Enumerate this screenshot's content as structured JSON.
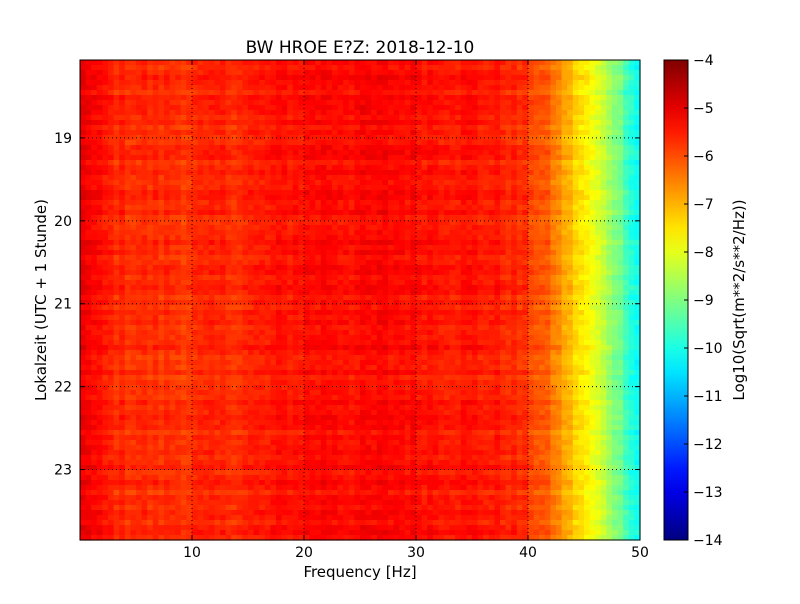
{
  "chart_data": {
    "type": "heatmap",
    "title": "BW HROE E?Z: 2018-12-10",
    "xlabel": "Frequency [Hz]",
    "ylabel": "Lokalzeit (UTC + 1 Stunde)",
    "xlim": [
      0,
      50
    ],
    "ylim_hours": [
      18.06,
      23.85
    ],
    "y_inverted": true,
    "x_ticks": [
      10,
      20,
      30,
      40,
      50
    ],
    "x_tick_labels": [
      "10",
      "20",
      "30",
      "40",
      "50"
    ],
    "y_ticks": [
      19,
      20,
      21,
      22,
      23
    ],
    "y_tick_labels": [
      "19",
      "20",
      "21",
      "22",
      "23"
    ],
    "grid": true,
    "colorbar": {
      "label": "Log10(Sqrt(m**2/s**2/Hz))",
      "min": -14,
      "max": -4,
      "ticks": [
        -4,
        -5,
        -6,
        -7,
        -8,
        -9,
        -10,
        -11,
        -12,
        -13,
        -14
      ],
      "tick_labels": [
        "−4",
        "−5",
        "−6",
        "−7",
        "−8",
        "−9",
        "−10",
        "−11",
        "−12",
        "−13",
        "−14"
      ],
      "colormap": "jet"
    },
    "spectral_profile": {
      "frequency_hz": [
        0,
        1,
        3,
        6,
        10,
        15,
        20,
        22,
        25,
        28,
        30,
        35,
        38,
        40,
        42,
        44,
        46,
        48,
        50
      ],
      "log10_amplitude": [
        -4.9,
        -5.3,
        -5.6,
        -5.7,
        -5.7,
        -5.6,
        -5.35,
        -5.3,
        -5.35,
        -5.3,
        -5.35,
        -5.45,
        -5.55,
        -5.8,
        -6.3,
        -7.2,
        -8.0,
        -9.0,
        -10.3
      ]
    }
  }
}
